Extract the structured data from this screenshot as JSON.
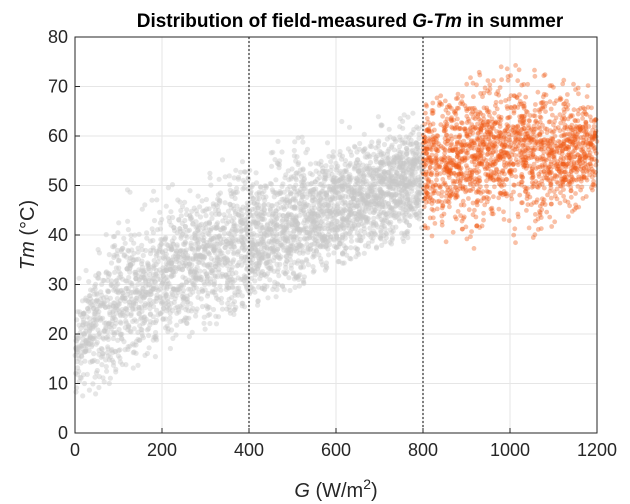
{
  "chart_data": {
    "type": "scatter",
    "title": {
      "prefix": "Distribution of field-measured ",
      "emphasis": "G-Tm",
      "suffix": " in summer"
    },
    "xlabel": {
      "var": "G",
      "unit_open": " (W/m",
      "unit_sup": "2",
      "unit_close": ")"
    },
    "ylabel": {
      "var": "Tm",
      "unit": " (°C)"
    },
    "xlim": [
      0,
      1200
    ],
    "ylim": [
      0,
      80
    ],
    "xticks": [
      "0",
      "200",
      "400",
      "600",
      "800",
      "1000",
      "1200"
    ],
    "yticks": [
      "0",
      "10",
      "20",
      "30",
      "40",
      "50",
      "60",
      "70",
      "80"
    ],
    "xtick_values": [
      0,
      200,
      400,
      600,
      800,
      1000,
      1200
    ],
    "ytick_values": [
      0,
      10,
      20,
      30,
      40,
      50,
      60,
      70,
      80
    ],
    "grid": true,
    "reference_lines": [
      {
        "x": 400,
        "style": "dotted",
        "color": "#000000"
      },
      {
        "x": 800,
        "style": "dotted",
        "color": "#000000"
      }
    ],
    "series": [
      {
        "color": "#c8c8c8",
        "x_range": [
          0,
          800
        ],
        "envelope": [
          {
            "x": 0,
            "y_low": 4,
            "y_center": 18,
            "y_high": 30
          },
          {
            "x": 50,
            "y_low": 8,
            "y_center": 22,
            "y_high": 38
          },
          {
            "x": 100,
            "y_low": 11,
            "y_center": 26,
            "y_high": 50
          },
          {
            "x": 200,
            "y_low": 16,
            "y_center": 31,
            "y_high": 52
          },
          {
            "x": 300,
            "y_low": 21,
            "y_center": 35,
            "y_high": 56
          },
          {
            "x": 400,
            "y_low": 25,
            "y_center": 39,
            "y_high": 59
          },
          {
            "x": 500,
            "y_low": 29,
            "y_center": 42,
            "y_high": 62
          },
          {
            "x": 600,
            "y_low": 33,
            "y_center": 46,
            "y_high": 63
          },
          {
            "x": 700,
            "y_low": 37,
            "y_center": 49,
            "y_high": 65
          },
          {
            "x": 800,
            "y_low": 40,
            "y_center": 52,
            "y_high": 66
          }
        ]
      },
      {
        "color": "#f05a14",
        "x_range": [
          800,
          1200
        ],
        "envelope": [
          {
            "x": 800,
            "y_low": 38,
            "y_center": 54,
            "y_high": 66
          },
          {
            "x": 900,
            "y_low": 36,
            "y_center": 56,
            "y_high": 72
          },
          {
            "x": 1000,
            "y_low": 38,
            "y_center": 58,
            "y_high": 75
          },
          {
            "x": 1100,
            "y_low": 40,
            "y_center": 56,
            "y_high": 72
          },
          {
            "x": 1200,
            "y_low": 48,
            "y_center": 58,
            "y_high": 70
          }
        ]
      }
    ]
  }
}
